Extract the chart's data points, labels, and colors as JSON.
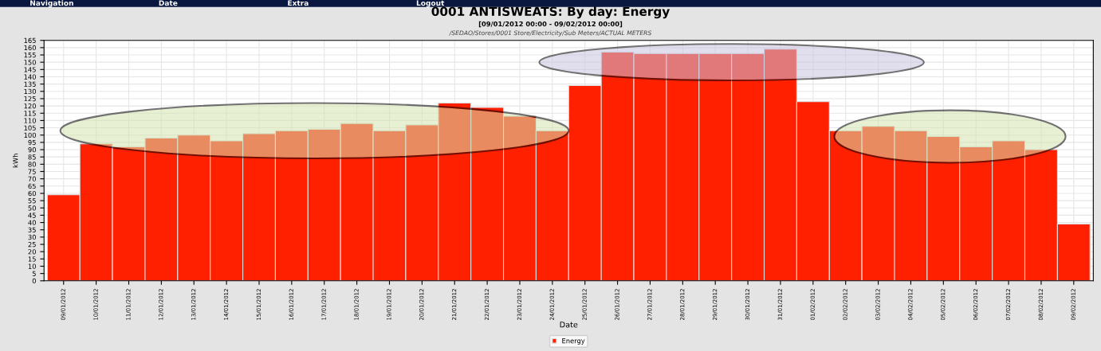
{
  "chart_data": {
    "type": "bar",
    "title": "0001 ANTISWEATS: By day: Energy",
    "subtitle": "[09/01/2012 00:00 - 09/02/2012 00:00]",
    "annotations": [
      "/SEDAO/Stores/0001 Store/Electricity/Sub Meters/ACTUAL METERS",
      "Navigation",
      "Date",
      "Extra",
      "Logout"
    ],
    "xlabel": "Date",
    "ylabel": "kWh",
    "categories": [
      "09/01/2012",
      "10/01/2012",
      "11/01/2012",
      "12/01/2012",
      "13/01/2012",
      "14/01/2012",
      "15/01/2012",
      "16/01/2012",
      "17/01/2012",
      "18/01/2012",
      "19/01/2012",
      "20/01/2012",
      "21/01/2012",
      "22/01/2012",
      "23/01/2012",
      "24/01/2012",
      "25/01/2012",
      "26/01/2012",
      "27/01/2012",
      "28/01/2012",
      "29/01/2012",
      "30/01/2012",
      "31/01/2012",
      "01/02/2012",
      "02/02/2012",
      "03/02/2012",
      "04/02/2012",
      "05/02/2012",
      "06/02/2012",
      "07/02/2012",
      "08/02/2012",
      "09/02/2012"
    ],
    "series": [
      {
        "name": "Energy",
        "color": "#ff2000",
        "values": [
          59,
          94,
          92,
          98,
          100,
          96,
          101,
          103,
          104,
          108,
          103,
          107,
          122,
          119,
          113,
          103,
          134,
          157,
          156,
          156,
          156,
          156,
          159,
          123,
          103,
          106,
          103,
          99,
          92,
          96,
          90,
          39
        ]
      }
    ],
    "ylim": [
      0,
      165
    ],
    "yticks": [
      0,
      5,
      10,
      15,
      20,
      25,
      30,
      35,
      40,
      45,
      50,
      55,
      60,
      65,
      70,
      75,
      80,
      85,
      90,
      95,
      100,
      105,
      110,
      115,
      120,
      125,
      130,
      135,
      140,
      145,
      150,
      155,
      160,
      165
    ],
    "grid": true,
    "legend": "bottom"
  }
}
